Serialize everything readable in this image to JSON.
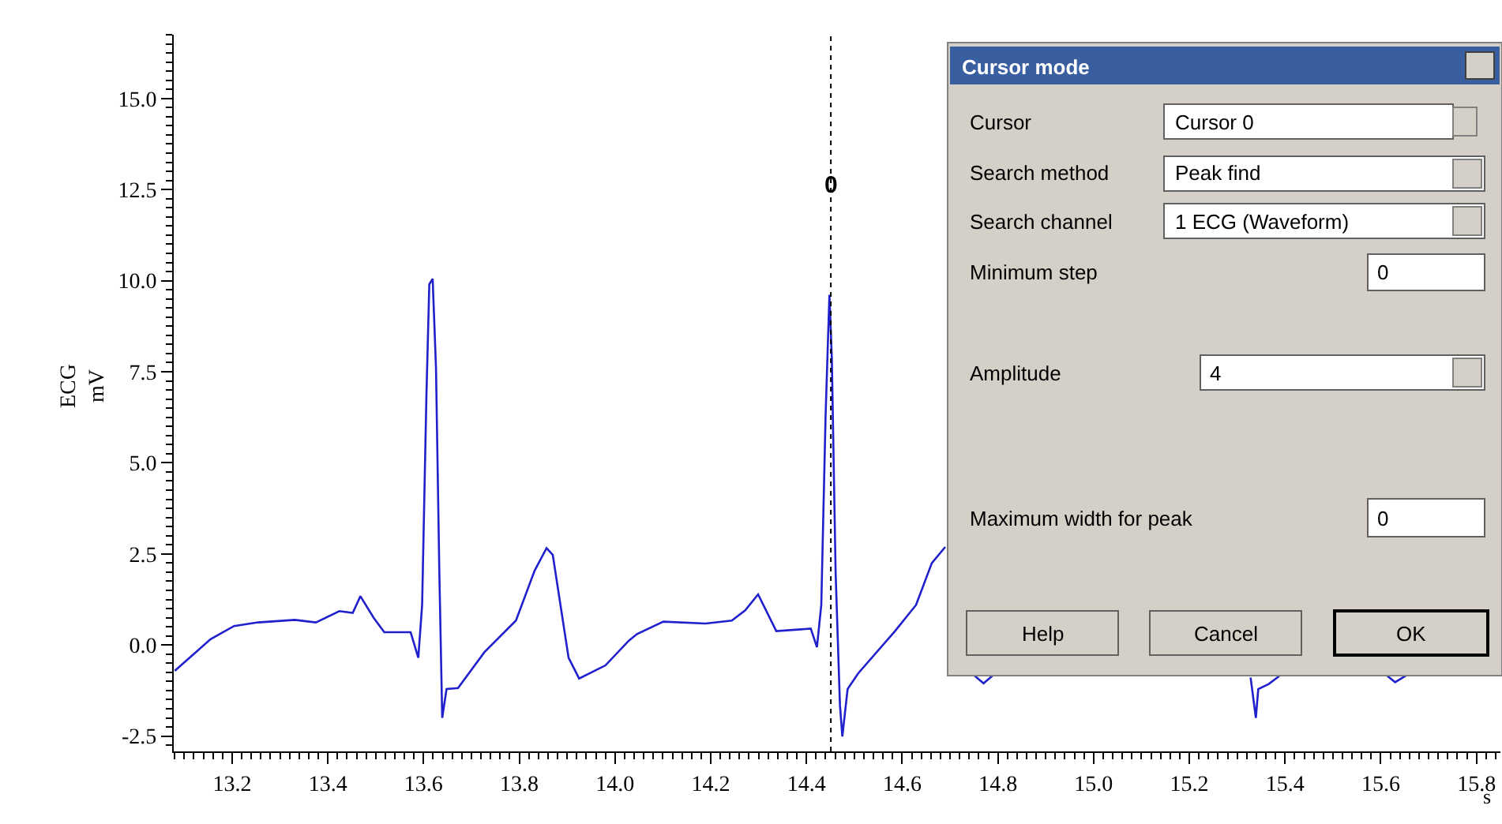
{
  "chart_data": {
    "type": "line",
    "xlabel": "s",
    "ylabel": "ECG\nmV",
    "x": [
      13.08,
      13.155,
      13.204,
      13.254,
      13.331,
      13.375,
      13.424,
      13.452,
      13.468,
      13.496,
      13.518,
      13.573,
      13.589,
      13.597,
      13.606,
      13.612,
      13.619,
      13.626,
      13.633,
      13.639,
      13.648,
      13.672,
      13.727,
      13.793,
      13.832,
      13.857,
      13.87,
      13.903,
      13.925,
      13.98,
      14.029,
      14.046,
      14.101,
      14.189,
      14.244,
      14.272,
      14.299,
      14.337,
      14.409,
      14.422,
      14.431,
      14.44,
      14.448,
      14.453,
      14.461,
      14.47,
      14.475,
      14.486,
      14.508,
      14.585,
      14.629,
      14.662,
      14.69,
      14.72,
      14.751,
      14.77,
      14.789,
      15.0,
      15.328,
      15.339,
      15.344,
      15.366,
      15.388,
      15.5,
      15.613,
      15.63,
      15.653
    ],
    "series": [
      {
        "color": "#2020cc",
        "values": [
          -0.71,
          0.16,
          0.52,
          0.62,
          0.69,
          0.62,
          0.93,
          0.88,
          1.34,
          0.74,
          0.35,
          0.35,
          -0.35,
          1.1,
          6.87,
          9.9,
          10.05,
          7.6,
          1.97,
          -2.0,
          -1.21,
          -1.18,
          -0.2,
          0.67,
          2.04,
          2.66,
          2.47,
          -0.35,
          -0.92,
          -0.56,
          0.12,
          0.3,
          0.64,
          0.59,
          0.67,
          0.95,
          1.39,
          0.38,
          0.45,
          -0.06,
          1.1,
          6.3,
          9.61,
          7.88,
          1.97,
          -1.65,
          -2.51,
          -1.21,
          -0.78,
          0.38,
          1.1,
          2.25,
          2.69,
          null,
          -0.84,
          -1.05,
          -0.84,
          null,
          -0.89,
          -2.0,
          -1.21,
          -1.07,
          -0.85,
          null,
          -0.84,
          -1.02,
          -0.84
        ]
      }
    ],
    "xlim": [
      13.078,
      15.85
    ],
    "xticks": [
      13.2,
      13.4,
      13.6,
      13.8,
      {
        "value": 14,
        "label": "14.0"
      },
      14.2,
      14.4,
      14.6,
      14.8,
      {
        "value": 15,
        "label": "15.0"
      },
      15.2,
      15.4,
      15.6,
      15.8
    ],
    "ylim": [
      -2.92,
      16.75
    ],
    "yticks": [
      {
        "value": -2.5,
        "label": "-2.5"
      },
      {
        "value": 0,
        "label": "0.0"
      },
      {
        "value": 2.5,
        "label": "2.5"
      },
      {
        "value": 5,
        "label": "5.0"
      },
      {
        "value": 7.5,
        "label": "7.5"
      },
      {
        "value": 10,
        "label": "10.0"
      },
      {
        "value": 12.5,
        "label": "12.5"
      },
      {
        "value": 15,
        "label": "15.0"
      }
    ],
    "marker": "none",
    "line_style": "solid",
    "ref_lines": [
      {
        "axis": "x",
        "value": 14.451,
        "color": "#000000",
        "line_style": "dotted"
      }
    ],
    "annotations": [
      {
        "text": "0",
        "x": 14.451,
        "y": 12.6
      },
      "Cursor mode",
      "Cursor",
      "Cursor 0",
      "Search method",
      "Peak find",
      "Search channel",
      "1 ECG (Waveform)",
      "Minimum step",
      "0",
      "Amplitude",
      "4",
      "Maximum width for peak",
      "0",
      "Help",
      "Cancel",
      "OK"
    ]
  }
}
